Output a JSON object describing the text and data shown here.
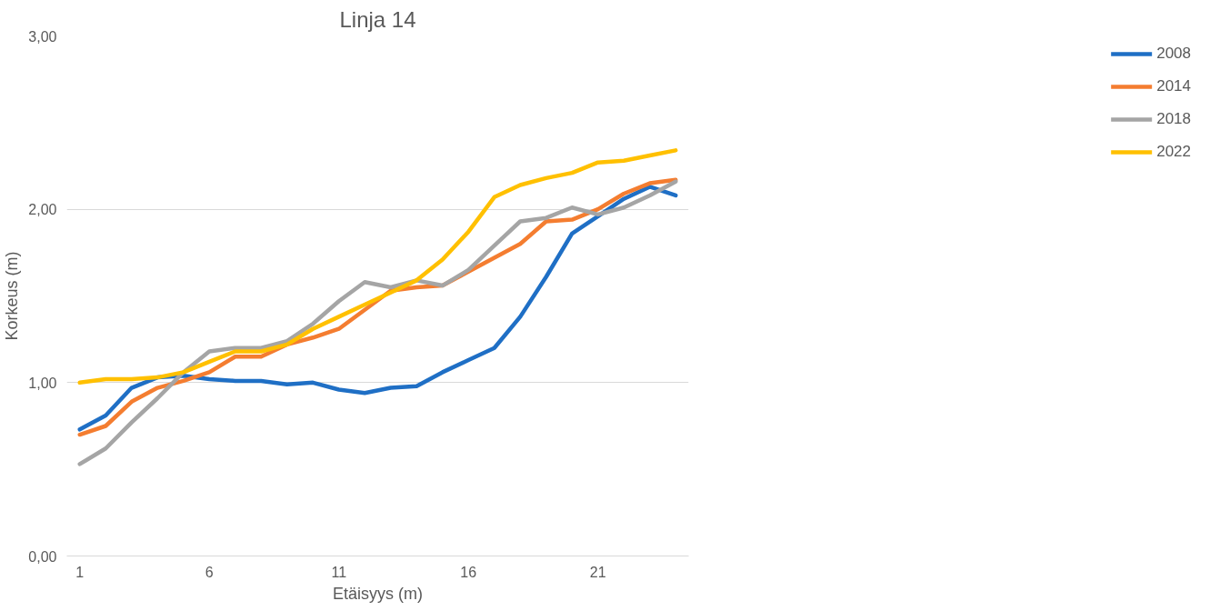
{
  "chart_data": {
    "type": "line",
    "title": "Linja 14",
    "xlabel": "Etäisyys (m)",
    "ylabel": "Korkeus (m)",
    "x": [
      1,
      2,
      3,
      4,
      5,
      6,
      7,
      8,
      9,
      10,
      11,
      12,
      13,
      14,
      15,
      16,
      17,
      18,
      19,
      20,
      21,
      22,
      23,
      24
    ],
    "xlim": [
      0.5,
      24.5
    ],
    "xticks": [
      1,
      6,
      11,
      16,
      21
    ],
    "ylim": [
      0,
      3
    ],
    "yticks": [
      {
        "value": 0,
        "label": "0,00"
      },
      {
        "value": 1,
        "label": "1,00"
      },
      {
        "value": 2,
        "label": "2,00"
      },
      {
        "value": 3,
        "label": "3,00"
      }
    ],
    "grid": "y",
    "legend": "right",
    "marker": "none",
    "line_style": "solid",
    "series": [
      {
        "name": "2008",
        "color": "#1f6fc5",
        "values": [
          0.73,
          0.81,
          0.97,
          1.03,
          1.04,
          1.02,
          1.01,
          1.01,
          0.99,
          1.0,
          0.96,
          0.94,
          0.97,
          0.98,
          1.06,
          1.13,
          1.2,
          1.38,
          1.61,
          1.86,
          1.96,
          2.06,
          2.13,
          2.08
        ]
      },
      {
        "name": "2014",
        "color": "#f47d30",
        "values": [
          0.7,
          0.75,
          0.89,
          0.97,
          1.01,
          1.06,
          1.15,
          1.15,
          1.22,
          1.26,
          1.31,
          1.42,
          1.53,
          1.55,
          1.56,
          1.64,
          1.72,
          1.8,
          1.93,
          1.94,
          2.0,
          2.09,
          2.15,
          2.17
        ]
      },
      {
        "name": "2018",
        "color": "#a5a5a5",
        "values": [
          0.53,
          0.62,
          0.77,
          0.91,
          1.06,
          1.18,
          1.2,
          1.2,
          1.24,
          1.34,
          1.47,
          1.58,
          1.55,
          1.59,
          1.56,
          1.65,
          1.79,
          1.93,
          1.95,
          2.01,
          1.97,
          2.01,
          2.08,
          2.16
        ]
      },
      {
        "name": "2022",
        "color": "#ffc000",
        "values": [
          1.0,
          1.02,
          1.02,
          1.03,
          1.06,
          1.12,
          1.18,
          1.18,
          1.22,
          1.31,
          1.38,
          1.45,
          1.52,
          1.59,
          1.71,
          1.87,
          2.07,
          2.14,
          2.18,
          2.21,
          2.27,
          2.28,
          2.31,
          2.34
        ]
      }
    ]
  }
}
